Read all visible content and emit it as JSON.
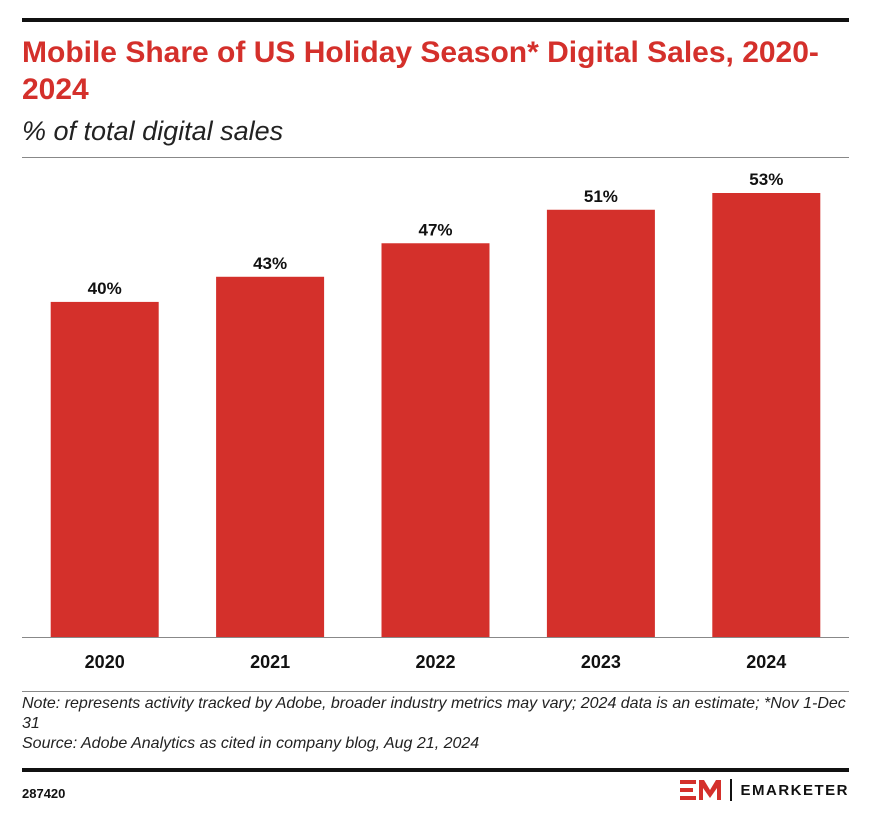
{
  "header": {
    "title": "Mobile Share of US Holiday Season* Digital Sales, 2020-2024",
    "subtitle": "% of total digital sales"
  },
  "chart_data": {
    "type": "bar",
    "title": "Mobile Share of US Holiday Season* Digital Sales, 2020-2024",
    "subtitle": "% of total digital sales",
    "categories": [
      "2020",
      "2021",
      "2022",
      "2023",
      "2024"
    ],
    "values": [
      40,
      43,
      47,
      51,
      53
    ],
    "value_labels": [
      "40%",
      "43%",
      "47%",
      "51%",
      "53%"
    ],
    "xlabel": "",
    "ylabel": "",
    "ylim": [
      0,
      55
    ],
    "grid": false,
    "legend": "none",
    "bar_color": "#d4302b"
  },
  "footer": {
    "note": "Note: represents activity tracked by Adobe, broader industry metrics may vary; 2024 data is an estimate; *Nov 1-Dec 31",
    "source": "Source: Adobe Analytics as cited in company blog, Aug 21, 2024",
    "chart_id": "287420",
    "brand": "EMARKETER",
    "brand_mark_icon": "em-logo-icon"
  },
  "colors": {
    "accent": "#d4302b",
    "text": "#111111"
  }
}
